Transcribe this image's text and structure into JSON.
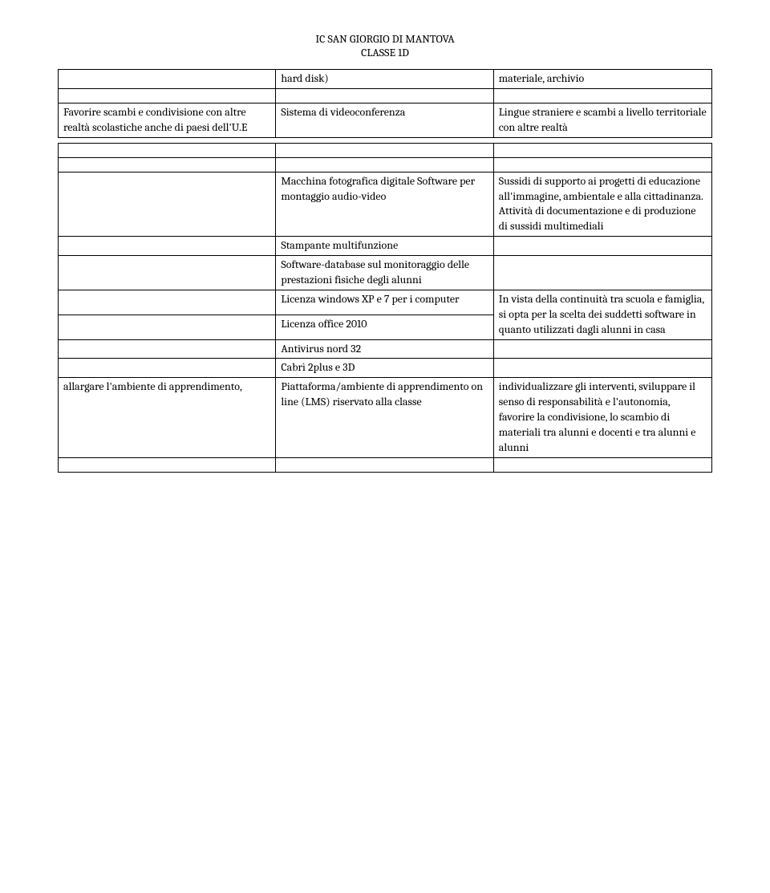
{
  "header": {
    "institution": "IC SAN GIORGIO DI MANTOVA",
    "class": "CLASSE 1D"
  },
  "table1": {
    "rows": [
      {
        "c1": "",
        "c2": "hard disk)",
        "c3": "materiale, archivio"
      },
      {
        "c1": "",
        "c2": "",
        "c3": ""
      },
      {
        "c1": "Favorire scambi e condivisione con altre realtà scolastiche anche di paesi dell'U.E",
        "c2": "Sistema di videoconferenza",
        "c3": "Lingue straniere e scambi a livello territoriale con altre realtà"
      }
    ]
  },
  "table2": {
    "rows": [
      {
        "c1": "",
        "c2": "",
        "c3": ""
      },
      {
        "c1": "",
        "c2": "",
        "c3": ""
      },
      {
        "c1": "",
        "c2": "Macchina fotografica digitale Software per montaggio audio-video",
        "c3": "Sussidi di supporto ai progetti di educazione all'immagine, ambientale e alla cittadinanza. Attività di documentazione e di produzione di sussidi multimediali"
      },
      {
        "c1": "",
        "c2": "Stampante multifunzione",
        "c3": ""
      },
      {
        "c1": "",
        "c2": "Software-database sul monitoraggio delle prestazioni fisiche degli alunni",
        "c3": ""
      },
      {
        "c1": "",
        "c2": "Licenza windows XP e 7 per i computer",
        "c3_merge_down": true,
        "c3": "In vista della continuità tra scuola e famiglia, si opta per la scelta dei suddetti software in quanto utilizzati dagli alunni in casa"
      },
      {
        "c1": "",
        "c2": "Licenza office 2010",
        "c3_skip": true
      },
      {
        "c1": "",
        "c2": "Antivirus nord 32",
        "c3": ""
      },
      {
        "c1": "",
        "c2": "Cabrì 2plus e 3D",
        "c3": ""
      },
      {
        "c1": "allargare l'ambiente di apprendimento,",
        "c2": "Piattaforma/ambiente di apprendimento on line (LMS) riservato alla classe",
        "c3": "individualizzare gli interventi, sviluppare il senso di responsabilità e l'autonomia, favorire la condivisione, lo scambio di materiali tra alunni e docenti e tra alunni e alunni"
      },
      {
        "c1": "",
        "c2": "",
        "c3": ""
      }
    ]
  }
}
